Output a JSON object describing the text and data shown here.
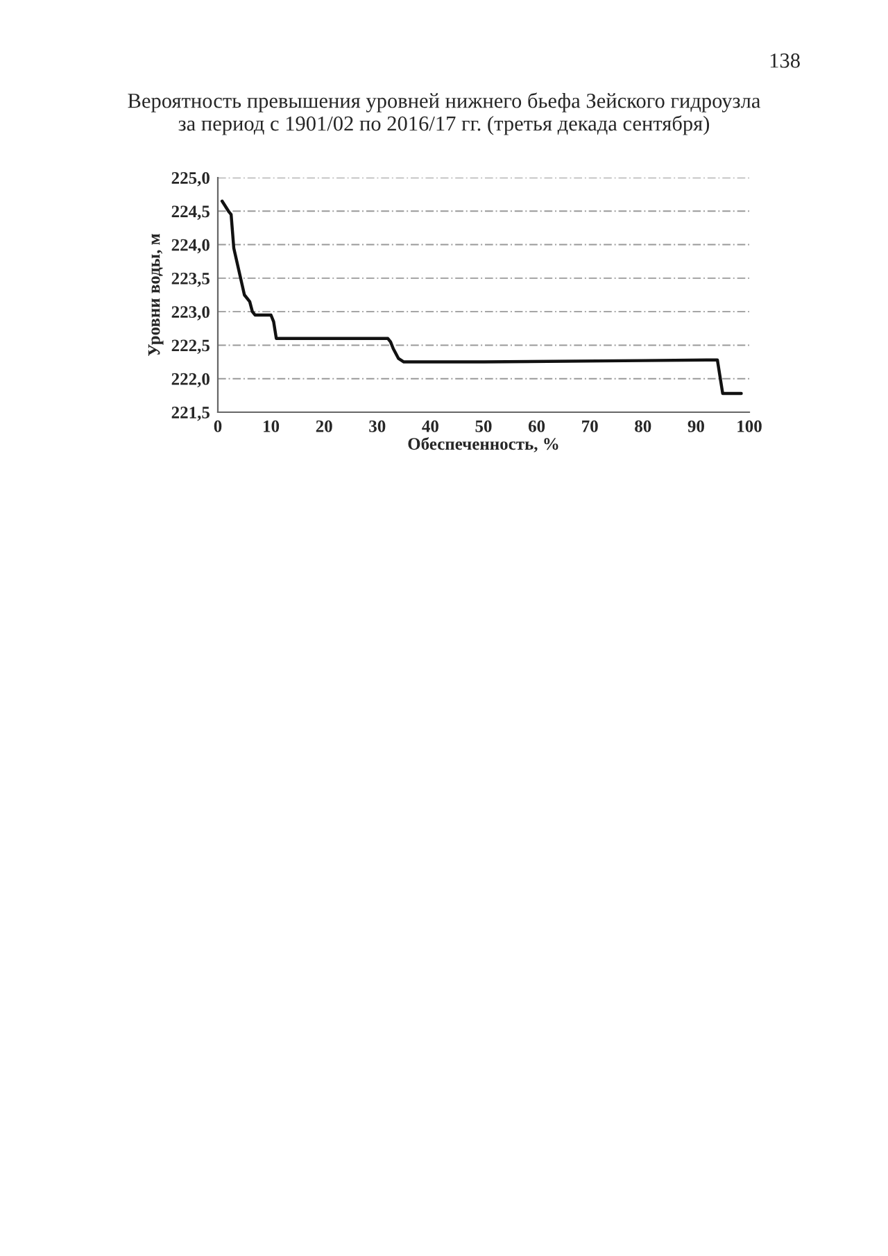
{
  "chart_data": {
    "type": "line",
    "title": "Вероятность превышения уровней нижнего бьефа Зейского гидроузла\nза период с 1901/02 по 2016/17 гг. (третья декада сентября)",
    "xlabel": "Обеспеченность, %",
    "ylabel": "Уровни воды, м",
    "annotations": [
      "138"
    ],
    "series": [
      {
        "color": "#111111",
        "x": [
          0.8,
          2,
          2.5,
          3,
          4,
          5,
          6,
          6.5,
          7,
          10,
          10.5,
          11,
          20,
          32,
          32.5,
          33,
          34,
          35,
          50,
          80,
          94,
          95,
          98.5
        ],
        "values": [
          224.65,
          224.5,
          224.45,
          223.95,
          223.6,
          223.25,
          223.15,
          223.0,
          222.95,
          222.95,
          222.85,
          222.6,
          222.6,
          222.6,
          222.55,
          222.45,
          222.3,
          222.25,
          222.25,
          222.27,
          222.28,
          221.78,
          221.78
        ]
      }
    ],
    "xlim": [
      0,
      100
    ],
    "xticks": [
      0,
      10,
      20,
      30,
      40,
      50,
      60,
      70,
      80,
      90,
      100
    ],
    "ylim": [
      221.5,
      225.0
    ],
    "yticks": [
      {
        "value": 221.5,
        "label": "221,5"
      },
      {
        "value": 222.0,
        "label": "222,0"
      },
      {
        "value": 222.5,
        "label": "222,5"
      },
      {
        "value": 223.0,
        "label": "223,0"
      },
      {
        "value": 223.5,
        "label": "223,5"
      },
      {
        "value": 224.0,
        "label": "224,0"
      },
      {
        "value": 224.5,
        "label": "224,5"
      },
      {
        "value": 225.0,
        "label": "225,0"
      }
    ],
    "grid": "y",
    "marker": "none",
    "line_style": "solid",
    "legend": false
  }
}
